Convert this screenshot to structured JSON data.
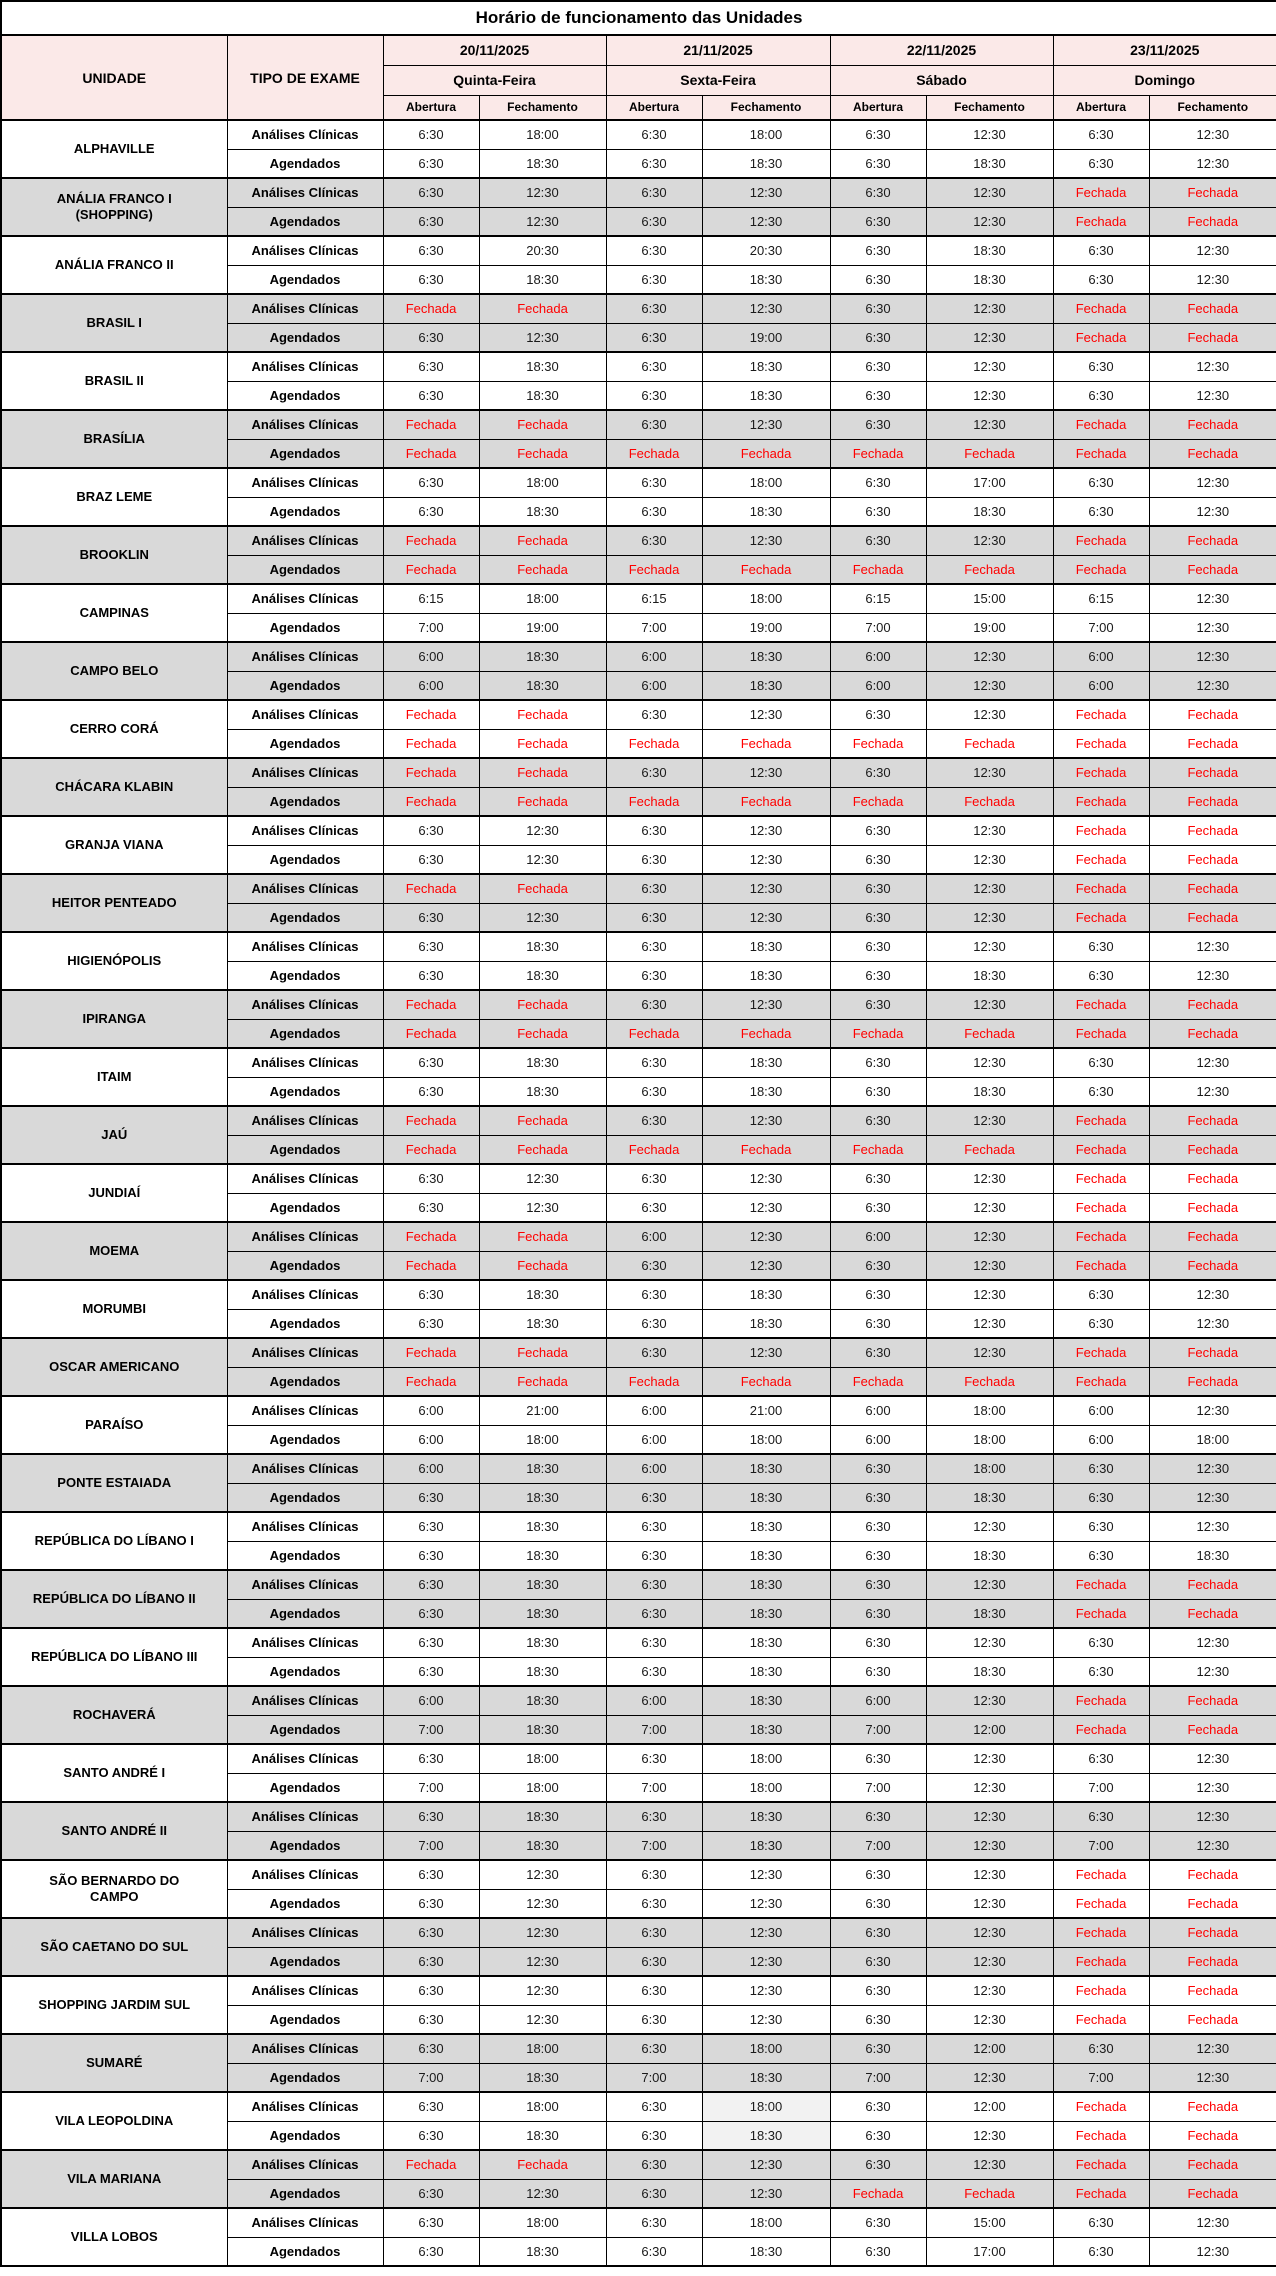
{
  "title": "Horário de funcionamento das Unidades",
  "columns": {
    "unit": "UNIDADE",
    "exam_type": "TIPO DE EXAME",
    "open": "Abertura",
    "close": "Fechamento"
  },
  "days": [
    {
      "date": "20/11/2025",
      "weekday": "Quinta-Feira"
    },
    {
      "date": "21/11/2025",
      "weekday": "Sexta-Feira"
    },
    {
      "date": "22/11/2025",
      "weekday": "Sábado"
    },
    {
      "date": "23/11/2025",
      "weekday": "Domingo"
    }
  ],
  "row_types": [
    "Análises Clínicas",
    "Agendados"
  ],
  "closed_label": "Fechada",
  "colors": {
    "header_bg": "#FBE9E8",
    "stripe_bg": "#D9D9D9",
    "closed_text": "#FF0000",
    "border": "#000000",
    "highlight_bg": "#F2F2F2"
  },
  "units": [
    {
      "name": "ALPHAVILLE",
      "rows": [
        [
          "6:30",
          "18:00",
          "6:30",
          "18:00",
          "6:30",
          "12:30",
          "6:30",
          "12:30"
        ],
        [
          "6:30",
          "18:30",
          "6:30",
          "18:30",
          "6:30",
          "18:30",
          "6:30",
          "12:30"
        ]
      ]
    },
    {
      "name": "ANÁLIA FRANCO I\n(SHOPPING)",
      "rows": [
        [
          "6:30",
          "12:30",
          "6:30",
          "12:30",
          "6:30",
          "12:30",
          "Fechada",
          "Fechada"
        ],
        [
          "6:30",
          "12:30",
          "6:30",
          "12:30",
          "6:30",
          "12:30",
          "Fechada",
          "Fechada"
        ]
      ]
    },
    {
      "name": "ANÁLIA FRANCO II",
      "rows": [
        [
          "6:30",
          "20:30",
          "6:30",
          "20:30",
          "6:30",
          "18:30",
          "6:30",
          "12:30"
        ],
        [
          "6:30",
          "18:30",
          "6:30",
          "18:30",
          "6:30",
          "18:30",
          "6:30",
          "12:30"
        ]
      ]
    },
    {
      "name": "BRASIL I",
      "rows": [
        [
          "Fechada",
          "Fechada",
          "6:30",
          "12:30",
          "6:30",
          "12:30",
          "Fechada",
          "Fechada"
        ],
        [
          "6:30",
          "12:30",
          "6:30",
          "19:00",
          "6:30",
          "12:30",
          "Fechada",
          "Fechada"
        ]
      ]
    },
    {
      "name": "BRASIL II",
      "rows": [
        [
          "6:30",
          "18:30",
          "6:30",
          "18:30",
          "6:30",
          "12:30",
          "6:30",
          "12:30"
        ],
        [
          "6:30",
          "18:30",
          "6:30",
          "18:30",
          "6:30",
          "12:30",
          "6:30",
          "12:30"
        ]
      ]
    },
    {
      "name": "BRASÍLIA",
      "rows": [
        [
          "Fechada",
          "Fechada",
          "6:30",
          "12:30",
          "6:30",
          "12:30",
          "Fechada",
          "Fechada"
        ],
        [
          "Fechada",
          "Fechada",
          "Fechada",
          "Fechada",
          "Fechada",
          "Fechada",
          "Fechada",
          "Fechada"
        ]
      ]
    },
    {
      "name": "BRAZ LEME",
      "rows": [
        [
          "6:30",
          "18:00",
          "6:30",
          "18:00",
          "6:30",
          "17:00",
          "6:30",
          "12:30"
        ],
        [
          "6:30",
          "18:30",
          "6:30",
          "18:30",
          "6:30",
          "18:30",
          "6:30",
          "12:30"
        ]
      ]
    },
    {
      "name": "BROOKLIN",
      "rows": [
        [
          "Fechada",
          "Fechada",
          "6:30",
          "12:30",
          "6:30",
          "12:30",
          "Fechada",
          "Fechada"
        ],
        [
          "Fechada",
          "Fechada",
          "Fechada",
          "Fechada",
          "Fechada",
          "Fechada",
          "Fechada",
          "Fechada"
        ]
      ]
    },
    {
      "name": "CAMPINAS",
      "rows": [
        [
          "6:15",
          "18:00",
          "6:15",
          "18:00",
          "6:15",
          "15:00",
          "6:15",
          "12:30"
        ],
        [
          "7:00",
          "19:00",
          "7:00",
          "19:00",
          "7:00",
          "19:00",
          "7:00",
          "12:30"
        ]
      ]
    },
    {
      "name": "CAMPO BELO",
      "rows": [
        [
          "6:00",
          "18:30",
          "6:00",
          "18:30",
          "6:00",
          "12:30",
          "6:00",
          "12:30"
        ],
        [
          "6:00",
          "18:30",
          "6:00",
          "18:30",
          "6:00",
          "12:30",
          "6:00",
          "12:30"
        ]
      ]
    },
    {
      "name": "CERRO CORÁ",
      "rows": [
        [
          "Fechada",
          "Fechada",
          "6:30",
          "12:30",
          "6:30",
          "12:30",
          "Fechada",
          "Fechada"
        ],
        [
          "Fechada",
          "Fechada",
          "Fechada",
          "Fechada",
          "Fechada",
          "Fechada",
          "Fechada",
          "Fechada"
        ]
      ]
    },
    {
      "name": "CHÁCARA KLABIN",
      "rows": [
        [
          "Fechada",
          "Fechada",
          "6:30",
          "12:30",
          "6:30",
          "12:30",
          "Fechada",
          "Fechada"
        ],
        [
          "Fechada",
          "Fechada",
          "Fechada",
          "Fechada",
          "Fechada",
          "Fechada",
          "Fechada",
          "Fechada"
        ]
      ]
    },
    {
      "name": "GRANJA VIANA",
      "rows": [
        [
          "6:30",
          "12:30",
          "6:30",
          "12:30",
          "6:30",
          "12:30",
          "Fechada",
          "Fechada"
        ],
        [
          "6:30",
          "12:30",
          "6:30",
          "12:30",
          "6:30",
          "12:30",
          "Fechada",
          "Fechada"
        ]
      ]
    },
    {
      "name": "HEITOR PENTEADO",
      "rows": [
        [
          "Fechada",
          "Fechada",
          "6:30",
          "12:30",
          "6:30",
          "12:30",
          "Fechada",
          "Fechada"
        ],
        [
          "6:30",
          "12:30",
          "6:30",
          "12:30",
          "6:30",
          "12:30",
          "Fechada",
          "Fechada"
        ]
      ]
    },
    {
      "name": "HIGIENÓPOLIS",
      "rows": [
        [
          "6:30",
          "18:30",
          "6:30",
          "18:30",
          "6:30",
          "12:30",
          "6:30",
          "12:30"
        ],
        [
          "6:30",
          "18:30",
          "6:30",
          "18:30",
          "6:30",
          "18:30",
          "6:30",
          "12:30"
        ]
      ]
    },
    {
      "name": "IPIRANGA",
      "rows": [
        [
          "Fechada",
          "Fechada",
          "6:30",
          "12:30",
          "6:30",
          "12:30",
          "Fechada",
          "Fechada"
        ],
        [
          "Fechada",
          "Fechada",
          "Fechada",
          "Fechada",
          "Fechada",
          "Fechada",
          "Fechada",
          "Fechada"
        ]
      ]
    },
    {
      "name": "ITAIM",
      "rows": [
        [
          "6:30",
          "18:30",
          "6:30",
          "18:30",
          "6:30",
          "12:30",
          "6:30",
          "12:30"
        ],
        [
          "6:30",
          "18:30",
          "6:30",
          "18:30",
          "6:30",
          "18:30",
          "6:30",
          "12:30"
        ]
      ]
    },
    {
      "name": "JAÚ",
      "rows": [
        [
          "Fechada",
          "Fechada",
          "6:30",
          "12:30",
          "6:30",
          "12:30",
          "Fechada",
          "Fechada"
        ],
        [
          "Fechada",
          "Fechada",
          "Fechada",
          "Fechada",
          "Fechada",
          "Fechada",
          "Fechada",
          "Fechada"
        ]
      ]
    },
    {
      "name": "JUNDIAÍ",
      "rows": [
        [
          "6:30",
          "12:30",
          "6:30",
          "12:30",
          "6:30",
          "12:30",
          "Fechada",
          "Fechada"
        ],
        [
          "6:30",
          "12:30",
          "6:30",
          "12:30",
          "6:30",
          "12:30",
          "Fechada",
          "Fechada"
        ]
      ]
    },
    {
      "name": "MOEMA",
      "rows": [
        [
          "Fechada",
          "Fechada",
          "6:00",
          "12:30",
          "6:00",
          "12:30",
          "Fechada",
          "Fechada"
        ],
        [
          "Fechada",
          "Fechada",
          "6:30",
          "12:30",
          "6:30",
          "12:30",
          "Fechada",
          "Fechada"
        ]
      ]
    },
    {
      "name": "MORUMBI",
      "rows": [
        [
          "6:30",
          "18:30",
          "6:30",
          "18:30",
          "6:30",
          "12:30",
          "6:30",
          "12:30"
        ],
        [
          "6:30",
          "18:30",
          "6:30",
          "18:30",
          "6:30",
          "12:30",
          "6:30",
          "12:30"
        ]
      ]
    },
    {
      "name": "OSCAR AMERICANO",
      "rows": [
        [
          "Fechada",
          "Fechada",
          "6:30",
          "12:30",
          "6:30",
          "12:30",
          "Fechada",
          "Fechada"
        ],
        [
          "Fechada",
          "Fechada",
          "Fechada",
          "Fechada",
          "Fechada",
          "Fechada",
          "Fechada",
          "Fechada"
        ]
      ]
    },
    {
      "name": "PARAÍSO",
      "rows": [
        [
          "6:00",
          "21:00",
          "6:00",
          "21:00",
          "6:00",
          "18:00",
          "6:00",
          "12:30"
        ],
        [
          "6:00",
          "18:00",
          "6:00",
          "18:00",
          "6:00",
          "18:00",
          "6:00",
          "18:00"
        ]
      ]
    },
    {
      "name": "PONTE ESTAIADA",
      "rows": [
        [
          "6:00",
          "18:30",
          "6:00",
          "18:30",
          "6:30",
          "18:00",
          "6:30",
          "12:30"
        ],
        [
          "6:30",
          "18:30",
          "6:30",
          "18:30",
          "6:30",
          "18:30",
          "6:30",
          "12:30"
        ]
      ]
    },
    {
      "name": "REPÚBLICA DO LÍBANO I",
      "rows": [
        [
          "6:30",
          "18:30",
          "6:30",
          "18:30",
          "6:30",
          "12:30",
          "6:30",
          "12:30"
        ],
        [
          "6:30",
          "18:30",
          "6:30",
          "18:30",
          "6:30",
          "18:30",
          "6:30",
          "18:30"
        ]
      ]
    },
    {
      "name": "REPÚBLICA DO LÍBANO II",
      "rows": [
        [
          "6:30",
          "18:30",
          "6:30",
          "18:30",
          "6:30",
          "12:30",
          "Fechada",
          "Fechada"
        ],
        [
          "6:30",
          "18:30",
          "6:30",
          "18:30",
          "6:30",
          "18:30",
          "Fechada",
          "Fechada"
        ]
      ]
    },
    {
      "name": "REPÚBLICA DO LÍBANO III",
      "rows": [
        [
          "6:30",
          "18:30",
          "6:30",
          "18:30",
          "6:30",
          "12:30",
          "6:30",
          "12:30"
        ],
        [
          "6:30",
          "18:30",
          "6:30",
          "18:30",
          "6:30",
          "18:30",
          "6:30",
          "12:30"
        ]
      ]
    },
    {
      "name": "ROCHAVERÁ",
      "rows": [
        [
          "6:00",
          "18:30",
          "6:00",
          "18:30",
          "6:00",
          "12:30",
          "Fechada",
          "Fechada"
        ],
        [
          "7:00",
          "18:30",
          "7:00",
          "18:30",
          "7:00",
          "12:00",
          "Fechada",
          "Fechada"
        ]
      ]
    },
    {
      "name": "SANTO ANDRÉ I",
      "rows": [
        [
          "6:30",
          "18:00",
          "6:30",
          "18:00",
          "6:30",
          "12:30",
          "6:30",
          "12:30"
        ],
        [
          "7:00",
          "18:00",
          "7:00",
          "18:00",
          "7:00",
          "12:30",
          "7:00",
          "12:30"
        ]
      ]
    },
    {
      "name": "SANTO ANDRÉ II",
      "rows": [
        [
          "6:30",
          "18:30",
          "6:30",
          "18:30",
          "6:30",
          "12:30",
          "6:30",
          "12:30"
        ],
        [
          "7:00",
          "18:30",
          "7:00",
          "18:30",
          "7:00",
          "12:30",
          "7:00",
          "12:30"
        ]
      ]
    },
    {
      "name": "SÃO BERNARDO DO\nCAMPO",
      "rows": [
        [
          "6:30",
          "12:30",
          "6:30",
          "12:30",
          "6:30",
          "12:30",
          "Fechada",
          "Fechada"
        ],
        [
          "6:30",
          "12:30",
          "6:30",
          "12:30",
          "6:30",
          "12:30",
          "Fechada",
          "Fechada"
        ]
      ]
    },
    {
      "name": "SÃO CAETANO DO SUL",
      "rows": [
        [
          "6:30",
          "12:30",
          "6:30",
          "12:30",
          "6:30",
          "12:30",
          "Fechada",
          "Fechada"
        ],
        [
          "6:30",
          "12:30",
          "6:30",
          "12:30",
          "6:30",
          "12:30",
          "Fechada",
          "Fechada"
        ]
      ]
    },
    {
      "name": "SHOPPING JARDIM SUL",
      "rows": [
        [
          "6:30",
          "12:30",
          "6:30",
          "12:30",
          "6:30",
          "12:30",
          "Fechada",
          "Fechada"
        ],
        [
          "6:30",
          "12:30",
          "6:30",
          "12:30",
          "6:30",
          "12:30",
          "Fechada",
          "Fechada"
        ]
      ]
    },
    {
      "name": "SUMARÉ",
      "rows": [
        [
          "6:30",
          "18:00",
          "6:30",
          "18:00",
          "6:30",
          "12:00",
          "6:30",
          "12:30"
        ],
        [
          "7:00",
          "18:30",
          "7:00",
          "18:30",
          "7:00",
          "12:30",
          "7:00",
          "12:30"
        ]
      ]
    },
    {
      "name": "VILA LEOPOLDINA",
      "highlight_col": 3,
      "rows": [
        [
          "6:30",
          "18:00",
          "6:30",
          "18:00",
          "6:30",
          "12:00",
          "Fechada",
          "Fechada"
        ],
        [
          "6:30",
          "18:30",
          "6:30",
          "18:30",
          "6:30",
          "12:30",
          "Fechada",
          "Fechada"
        ]
      ]
    },
    {
      "name": "VILA MARIANA",
      "rows": [
        [
          "Fechada",
          "Fechada",
          "6:30",
          "12:30",
          "6:30",
          "12:30",
          "Fechada",
          "Fechada"
        ],
        [
          "6:30",
          "12:30",
          "6:30",
          "12:30",
          "Fechada",
          "Fechada",
          "Fechada",
          "Fechada"
        ]
      ]
    },
    {
      "name": "VILLA LOBOS",
      "rows": [
        [
          "6:30",
          "18:00",
          "6:30",
          "18:00",
          "6:30",
          "15:00",
          "6:30",
          "12:30"
        ],
        [
          "6:30",
          "18:30",
          "6:30",
          "18:30",
          "6:30",
          "17:00",
          "6:30",
          "12:30"
        ]
      ]
    }
  ]
}
